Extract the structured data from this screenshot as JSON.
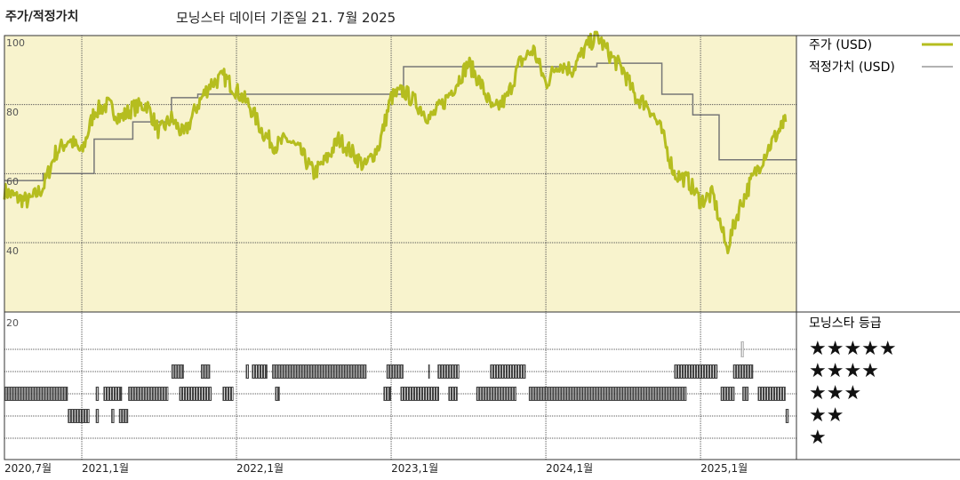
{
  "header": {
    "title": "주가/적정가치",
    "subtitle": "모닝스타 데이터 기준일 21. 7월 2025"
  },
  "legend": {
    "price_label": "주가 (USD)",
    "fair_label": "적정가치 (USD)",
    "rating_title": "모닝스타 등급"
  },
  "colors": {
    "price_line": "#b5bd1f",
    "fair_line": "#777777",
    "upper_bg": "#f8f3cd",
    "grid": "#555555",
    "rating_bar": "#222222"
  },
  "stars": [
    "★★★★★",
    "★★★★",
    "★★★",
    "★★",
    "★"
  ],
  "chart_data": {
    "type": "line",
    "x_ticks": [
      "2020,7월",
      "2021,1월",
      "2022,1월",
      "2023,1월",
      "2024,1월",
      "2025,1월"
    ],
    "x_tick_values": [
      2020.5,
      2021.0,
      2022.0,
      2023.0,
      2024.0,
      2025.0
    ],
    "xlim": [
      2020.5,
      2025.62
    ],
    "y_ticks": [
      "100",
      "80",
      "60",
      "40",
      "20"
    ],
    "ylim": [
      20,
      100
    ],
    "series": [
      {
        "name": "주가 (USD)",
        "points": [
          [
            2020.5,
            55
          ],
          [
            2020.58,
            53
          ],
          [
            2020.66,
            52
          ],
          [
            2020.75,
            56
          ],
          [
            2020.83,
            66
          ],
          [
            2020.92,
            70
          ],
          [
            2021.0,
            66
          ],
          [
            2021.08,
            78
          ],
          [
            2021.17,
            80
          ],
          [
            2021.25,
            76
          ],
          [
            2021.33,
            79
          ],
          [
            2021.42,
            80
          ],
          [
            2021.5,
            72
          ],
          [
            2021.58,
            76
          ],
          [
            2021.66,
            71
          ],
          [
            2021.75,
            80
          ],
          [
            2021.83,
            86
          ],
          [
            2021.92,
            88
          ],
          [
            2022.0,
            84
          ],
          [
            2022.08,
            80
          ],
          [
            2022.17,
            72
          ],
          [
            2022.25,
            68
          ],
          [
            2022.33,
            70
          ],
          [
            2022.42,
            66
          ],
          [
            2022.5,
            60
          ],
          [
            2022.58,
            64
          ],
          [
            2022.66,
            70
          ],
          [
            2022.75,
            66
          ],
          [
            2022.83,
            62
          ],
          [
            2022.92,
            68
          ],
          [
            2023.0,
            82
          ],
          [
            2023.08,
            84
          ],
          [
            2023.17,
            80
          ],
          [
            2023.25,
            76
          ],
          [
            2023.33,
            80
          ],
          [
            2023.42,
            86
          ],
          [
            2023.5,
            92
          ],
          [
            2023.58,
            86
          ],
          [
            2023.66,
            78
          ],
          [
            2023.75,
            82
          ],
          [
            2023.83,
            92
          ],
          [
            2023.92,
            96
          ],
          [
            2024.0,
            86
          ],
          [
            2024.08,
            92
          ],
          [
            2024.17,
            90
          ],
          [
            2024.25,
            96
          ],
          [
            2024.33,
            100
          ],
          [
            2024.42,
            94
          ],
          [
            2024.5,
            90
          ],
          [
            2024.58,
            82
          ],
          [
            2024.66,
            80
          ],
          [
            2024.75,
            72
          ],
          [
            2024.83,
            60
          ],
          [
            2024.92,
            58
          ],
          [
            2025.0,
            52
          ],
          [
            2025.08,
            54
          ],
          [
            2025.17,
            38
          ],
          [
            2025.25,
            50
          ],
          [
            2025.33,
            58
          ],
          [
            2025.42,
            66
          ],
          [
            2025.5,
            72
          ],
          [
            2025.55,
            75
          ]
        ]
      },
      {
        "name": "적정가치 (USD)",
        "steps": [
          [
            2020.5,
            58
          ],
          [
            2020.75,
            58
          ],
          [
            2020.75,
            60
          ],
          [
            2021.08,
            60
          ],
          [
            2021.08,
            70
          ],
          [
            2021.33,
            70
          ],
          [
            2021.33,
            75
          ],
          [
            2021.58,
            75
          ],
          [
            2021.58,
            82
          ],
          [
            2021.75,
            82
          ],
          [
            2021.75,
            83
          ],
          [
            2023.08,
            83
          ],
          [
            2023.08,
            91
          ],
          [
            2024.33,
            91
          ],
          [
            2024.33,
            92
          ],
          [
            2024.75,
            92
          ],
          [
            2024.75,
            83
          ],
          [
            2024.95,
            83
          ],
          [
            2024.95,
            77
          ],
          [
            2025.12,
            77
          ],
          [
            2025.12,
            64
          ],
          [
            2025.62,
            64
          ]
        ]
      }
    ],
    "rating_segments": [
      {
        "stars": 5,
        "from": 2025.26,
        "to": 2025.28
      },
      {
        "stars": 4,
        "from": 2021.58,
        "to": 2021.66
      },
      {
        "stars": 4,
        "from": 2021.77,
        "to": 2021.83
      },
      {
        "stars": 4,
        "from": 2022.06,
        "to": 2022.08
      },
      {
        "stars": 4,
        "from": 2022.1,
        "to": 2022.2
      },
      {
        "stars": 4,
        "from": 2022.23,
        "to": 2022.84
      },
      {
        "stars": 4,
        "from": 2022.97,
        "to": 2023.08
      },
      {
        "stars": 4,
        "from": 2023.24,
        "to": 2023.25
      },
      {
        "stars": 4,
        "from": 2023.3,
        "to": 2023.44
      },
      {
        "stars": 4,
        "from": 2023.64,
        "to": 2023.87
      },
      {
        "stars": 4,
        "from": 2024.83,
        "to": 2025.11
      },
      {
        "stars": 4,
        "from": 2025.21,
        "to": 2025.34
      },
      {
        "stars": 3,
        "from": 2020.5,
        "to": 2020.91
      },
      {
        "stars": 3,
        "from": 2021.09,
        "to": 2021.11
      },
      {
        "stars": 3,
        "from": 2021.14,
        "to": 2021.26
      },
      {
        "stars": 3,
        "from": 2021.3,
        "to": 2021.56
      },
      {
        "stars": 3,
        "from": 2021.63,
        "to": 2021.84
      },
      {
        "stars": 3,
        "from": 2021.91,
        "to": 2021.98
      },
      {
        "stars": 3,
        "from": 2022.25,
        "to": 2022.28
      },
      {
        "stars": 3,
        "from": 2022.95,
        "to": 2023.0
      },
      {
        "stars": 3,
        "from": 2023.06,
        "to": 2023.31
      },
      {
        "stars": 3,
        "from": 2023.37,
        "to": 2023.43
      },
      {
        "stars": 3,
        "from": 2023.55,
        "to": 2023.81
      },
      {
        "stars": 3,
        "from": 2023.89,
        "to": 2024.91
      },
      {
        "stars": 3,
        "from": 2025.13,
        "to": 2025.22
      },
      {
        "stars": 3,
        "from": 2025.27,
        "to": 2025.31
      },
      {
        "stars": 3,
        "from": 2025.37,
        "to": 2025.55
      },
      {
        "stars": 2,
        "from": 2020.91,
        "to": 2021.05
      },
      {
        "stars": 2,
        "from": 2021.09,
        "to": 2021.11
      },
      {
        "stars": 2,
        "from": 2021.19,
        "to": 2021.21
      },
      {
        "stars": 2,
        "from": 2021.24,
        "to": 2021.3
      },
      {
        "stars": 2,
        "from": 2025.55,
        "to": 2025.57
      }
    ]
  }
}
